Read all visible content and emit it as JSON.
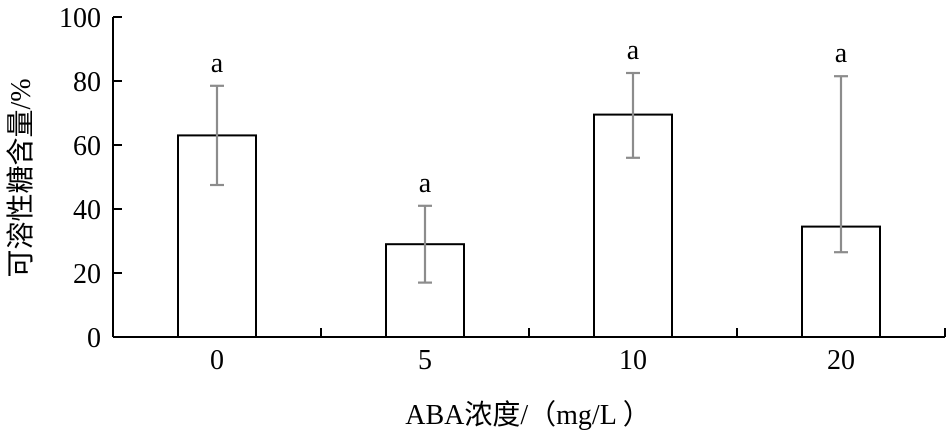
{
  "chart_data": {
    "type": "bar",
    "categories": [
      "0",
      "5",
      "10",
      "20"
    ],
    "values": [
      63,
      29,
      69.5,
      34.5
    ],
    "error_low": [
      47.5,
      17,
      56,
      26.5
    ],
    "error_high": [
      78.5,
      41,
      82.5,
      81.5
    ],
    "significance_labels": [
      "a",
      "a",
      "a",
      "a"
    ],
    "xlabel": "ABA浓度/（mg/L ）",
    "ylabel": "可溶性糖含量/%",
    "ylim": [
      0,
      100
    ],
    "yticks": [
      "0",
      "20",
      "40",
      "60",
      "80",
      "100"
    ],
    "grid": false,
    "bar_fill": "#ffffff",
    "bar_stroke": "#000000",
    "error_color": "#8c8c8c"
  }
}
